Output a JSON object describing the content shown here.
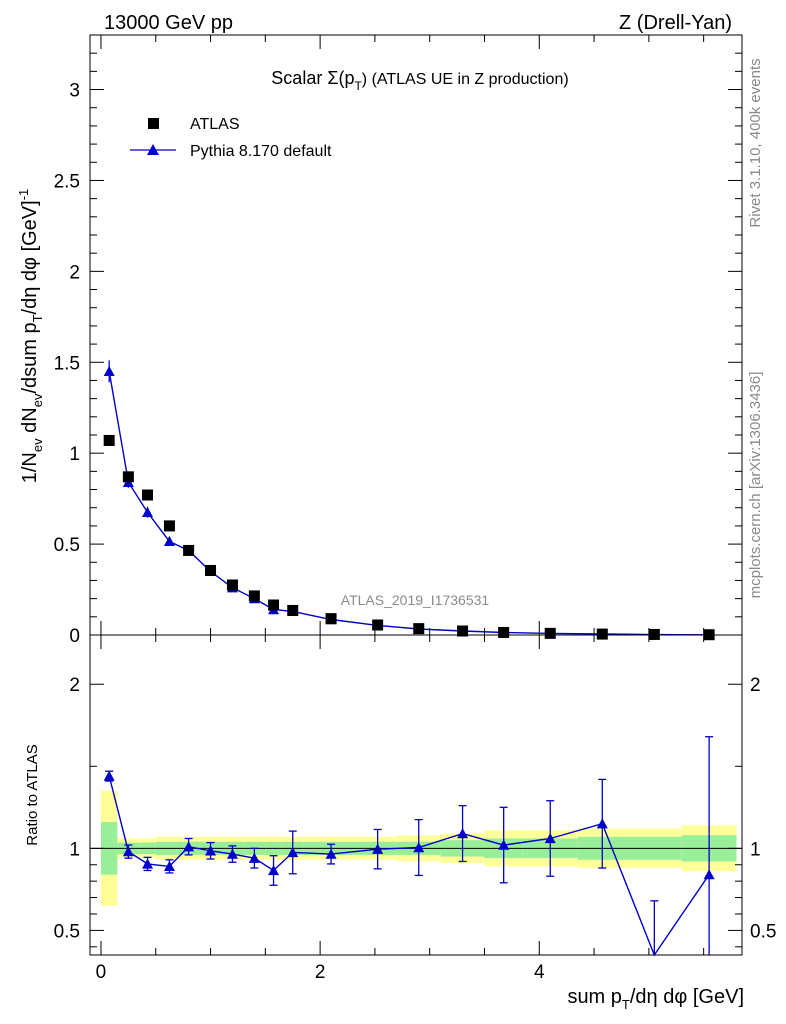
{
  "header": {
    "left": "13000 GeV pp",
    "right": "Z (Drell-Yan)"
  },
  "side_text": {
    "rivet": "Rivet 3.1.10,  400k events",
    "mcplots": "mcplots.cern.ch [arXiv:1306.3436]"
  },
  "chart_data": {
    "type": "scatter",
    "title_main": "Scalar Σ(p",
    "title_sub": "T",
    "title_rest": ") (ATLAS UE in Z production)",
    "watermark": "ATLAS_2019_I1736531",
    "legend": [
      {
        "name": "ATLAS",
        "marker": "square",
        "color": "#000000"
      },
      {
        "name": "Pythia 8.170 default",
        "marker": "triangle",
        "color": "#0000cc"
      }
    ],
    "x": [
      0.075,
      0.25,
      0.425,
      0.625,
      0.8,
      1.0,
      1.2,
      1.4,
      1.575,
      1.75,
      2.1,
      2.525,
      2.9,
      3.3,
      3.675,
      4.1,
      4.575,
      5.05,
      5.55
    ],
    "main": {
      "ylabel": "1/N_ev dN_ev/dsum p_T/dη dφ [GeV]^-1",
      "ylabel_parts": {
        "a": "1/N",
        "a_sub": "ev",
        "b": " dN",
        "b_sub": "ev",
        "c": "/dsum p",
        "c_sub": "T",
        "d": "/dη dφ  [GeV]",
        "d_sup": "-1"
      },
      "xlim": [
        -0.1,
        5.85
      ],
      "ylim": [
        0,
        3.3
      ],
      "yticks": [
        0,
        0.5,
        1,
        1.5,
        2,
        2.5,
        3
      ],
      "ytick_labels": [
        "0",
        "0.5",
        "1",
        "1.5",
        "2",
        "2.5",
        "3"
      ],
      "series": [
        {
          "name": "ATLAS",
          "values": [
            1.07,
            0.87,
            0.77,
            0.6,
            0.465,
            0.355,
            0.275,
            0.215,
            0.165,
            0.135,
            0.09,
            0.055,
            0.035,
            0.022,
            0.014,
            0.009,
            0.005,
            0.003,
            0.0015
          ]
        },
        {
          "name": "Pythia 8.170 default",
          "values": [
            1.45,
            0.84,
            0.675,
            0.515,
            0.465,
            0.35,
            0.26,
            0.2,
            0.14,
            0.13,
            0.085,
            0.053,
            0.033,
            0.022,
            0.014,
            0.009,
            0.006,
            0.002,
            0.0012
          ],
          "errors": [
            0.06,
            0.03,
            0.03,
            0.025,
            0.02,
            0.015,
            0.012,
            0.01,
            0.008,
            0.007,
            0.005,
            0.003,
            0.002,
            0.002,
            0.001,
            0.001,
            0.001,
            0.001,
            0.001
          ]
        }
      ]
    },
    "ratio": {
      "ylabel": "Ratio to ATLAS",
      "ylim": [
        0.35,
        2.3
      ],
      "yticks": [
        0.5,
        1,
        2
      ],
      "ytick_labels": [
        "0.5",
        "1",
        "2"
      ],
      "xticks": [
        0,
        2,
        4
      ],
      "xtick_labels": [
        "0",
        "2",
        "4"
      ],
      "xlabel_parts": {
        "a": "sum p",
        "a_sub": "T",
        "b": "/dη dφ [GeV]"
      },
      "values": [
        1.44,
        0.98,
        0.905,
        0.89,
        1.01,
        0.985,
        0.965,
        0.94,
        0.865,
        0.975,
        0.965,
        0.995,
        1.005,
        1.09,
        1.02,
        1.06,
        1.15,
        0.33,
        0.84
      ],
      "errors": [
        0.03,
        0.04,
        0.04,
        0.04,
        0.05,
        0.05,
        0.05,
        0.06,
        0.09,
        0.13,
        0.06,
        0.12,
        0.17,
        0.17,
        0.23,
        0.23,
        0.27,
        0.35,
        0.84
      ],
      "band_edges": [
        0,
        0.15,
        0.35,
        0.5,
        0.75,
        0.9,
        1.1,
        1.3,
        1.5,
        1.65,
        1.85,
        2.35,
        2.7,
        3.1,
        3.5,
        3.85,
        4.35,
        4.8,
        5.3,
        5.8
      ],
      "band_green": [
        0.16,
        0.035,
        0.035,
        0.04,
        0.04,
        0.04,
        0.04,
        0.04,
        0.04,
        0.04,
        0.04,
        0.04,
        0.04,
        0.05,
        0.06,
        0.06,
        0.07,
        0.07,
        0.08
      ],
      "band_yellow": [
        0.35,
        0.06,
        0.06,
        0.07,
        0.07,
        0.07,
        0.07,
        0.07,
        0.07,
        0.07,
        0.07,
        0.07,
        0.08,
        0.09,
        0.11,
        0.11,
        0.12,
        0.12,
        0.14
      ]
    }
  }
}
